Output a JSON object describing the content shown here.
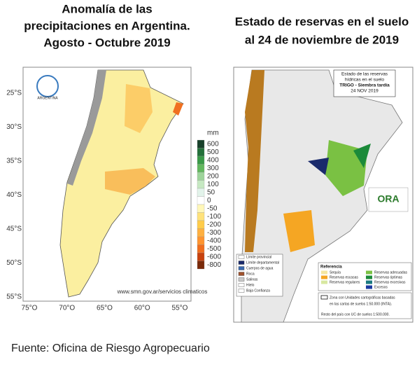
{
  "left": {
    "title": [
      "Anomalía de las",
      "precipitaciones en Argentina.",
      "Agosto - Octubre 2019"
    ],
    "lat_labels": [
      "25°S",
      "30°S",
      "35°S",
      "40°S",
      "45°S",
      "50°S",
      "55°S"
    ],
    "lon_labels": [
      "75°O",
      "70°O",
      "65°O",
      "60°O",
      "55°O"
    ],
    "logo_text": "ARGENTINA",
    "url": "www.smn.gov.ar/servicios climaticos",
    "legend_unit": "mm",
    "legend_values": [
      600,
      500,
      400,
      300,
      200,
      100,
      50,
      0,
      -50,
      -100,
      -200,
      -300,
      -400,
      -500,
      -600,
      -800
    ]
  },
  "right": {
    "title": [
      "Estado de reservas en el suelo",
      "al 24 de noviembre de 2019"
    ],
    "box_title": [
      "Estado de las reservas",
      "hídricas en el suelo",
      "TRIGO - Siembra tardía",
      "24 NOV 2019"
    ],
    "logo": "ORA",
    "map_legend": [
      "Límite provincial",
      "Límite departamental",
      "Cuerpos de agua",
      "Roca",
      "Salinas",
      "Hielo",
      "Baja Confianza"
    ],
    "legend_title": "Referencia",
    "legend_items": [
      "Sequía",
      "Reservas escasas",
      "Reservas regulares",
      "Reservas adecuadas",
      "Reservas óptimas",
      "Reservas excesivas",
      "Excesos"
    ],
    "note": [
      "Zona con Unidades cartográficas basadas",
      "en las cartas de suelos 1:50.000 (INTA).",
      "Resto del país con UC de suelos 1:500.000."
    ]
  },
  "footer": "Fuente: Oficina de Riesgo Agropecuario"
}
